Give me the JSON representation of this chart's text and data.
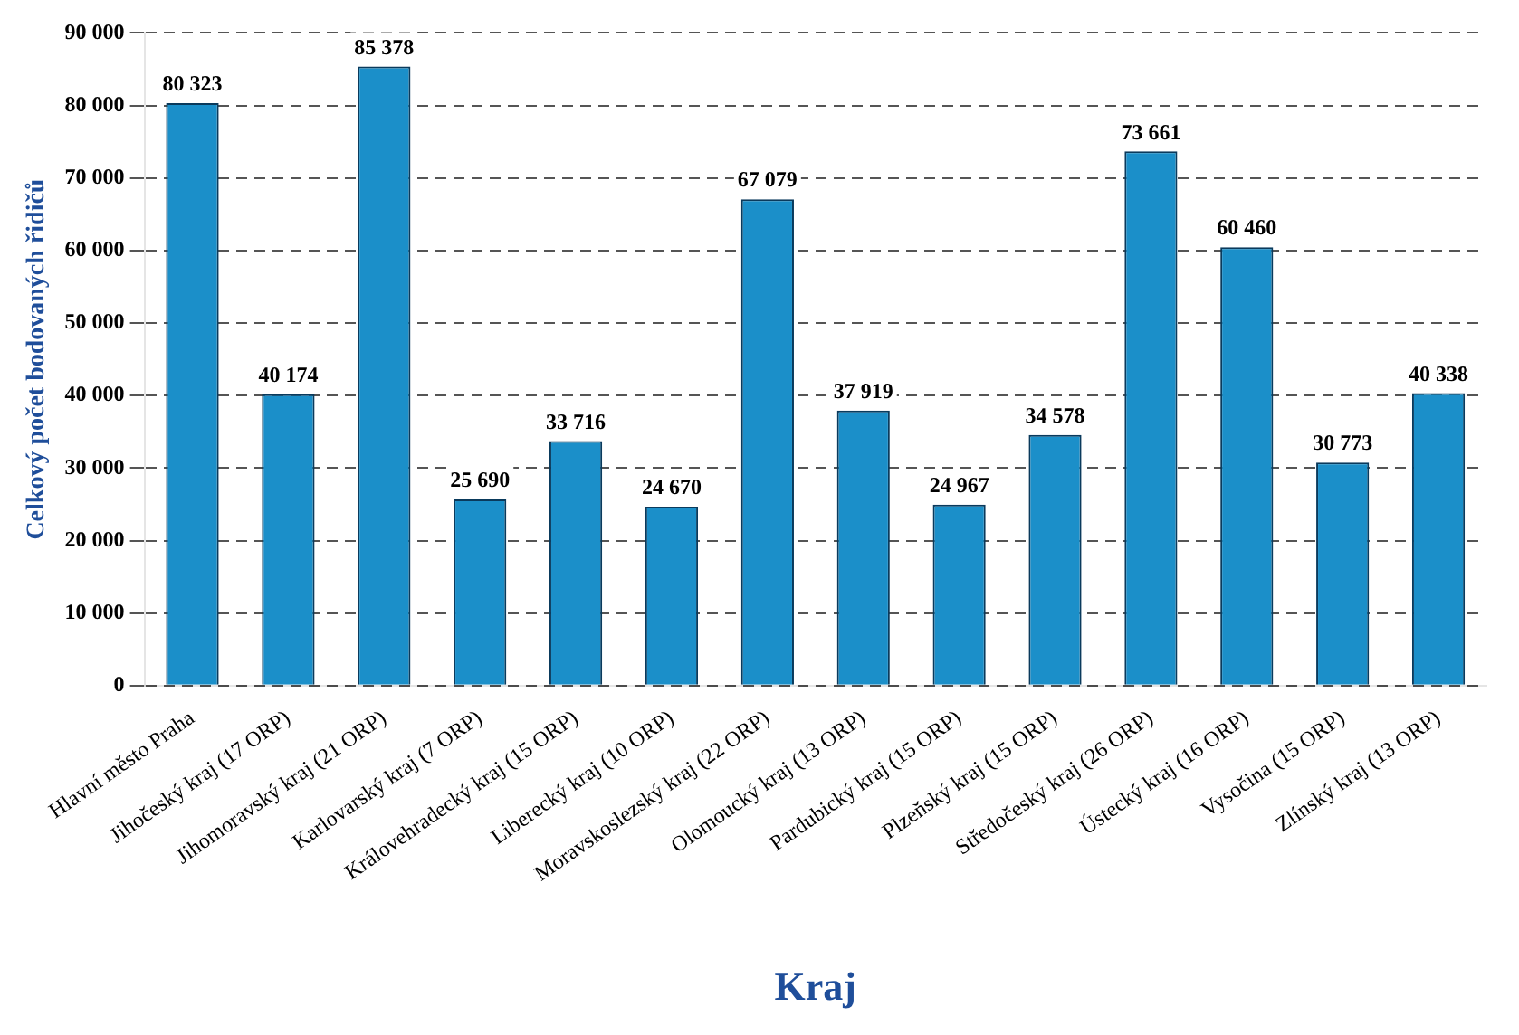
{
  "chart_data": {
    "type": "bar",
    "xlabel": "Kraj",
    "ylabel": "Celkový počet bodovaných řidičů",
    "categories": [
      "Hlavní město Praha",
      "Jihočeský kraj (17 ORP)",
      "Jihomoravský kraj (21 ORP)",
      "Karlovarský kraj (7 ORP)",
      "Královehradecký kraj (15 ORP)",
      "Liberecký kraj (10 ORP)",
      "Moravskoslezský kraj (22 ORP)",
      "Olomoucký kraj (13 ORP)",
      "Pardubický kraj (15 ORP)",
      "Plzeňský kraj (15 ORP)",
      "Středočeský kraj (26 ORP)",
      "Ústecký kraj (16 ORP)",
      "Vysočina (15 ORP)",
      "Zlínský kraj (13 ORP)"
    ],
    "values": [
      80323,
      40174,
      85378,
      25690,
      33716,
      24670,
      67079,
      37919,
      24967,
      34578,
      73661,
      60460,
      30773,
      40338
    ],
    "value_labels": [
      "80 323",
      "40 174",
      "85 378",
      "25 690",
      "33 716",
      "24 670",
      "67 079",
      "37 919",
      "24 967",
      "34 578",
      "73 661",
      "60 460",
      "30 773",
      "40 338"
    ],
    "color": "#1b8fc9",
    "ylim": [
      0,
      90000
    ],
    "yticks": [
      {
        "value": 0,
        "label": "0"
      },
      {
        "value": 10000,
        "label": "10 000"
      },
      {
        "value": 20000,
        "label": "20 000"
      },
      {
        "value": 30000,
        "label": "30 000"
      },
      {
        "value": 40000,
        "label": "40 000"
      },
      {
        "value": 50000,
        "label": "50 000"
      },
      {
        "value": 60000,
        "label": "60 000"
      },
      {
        "value": 70000,
        "label": "70 000"
      },
      {
        "value": 80000,
        "label": "80 000"
      },
      {
        "value": 90000,
        "label": "90 000"
      }
    ],
    "grid": "y",
    "legend": false
  }
}
